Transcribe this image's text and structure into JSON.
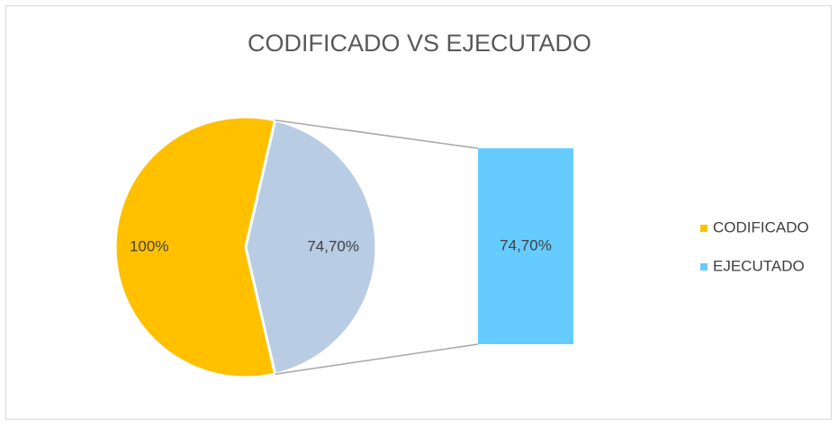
{
  "chart_data": {
    "type": "bar-of-pie",
    "title": "CODIFICADO VS EJECUTADO",
    "categories": [
      "CODIFICADO",
      "EJECUTADO"
    ],
    "values": [
      100,
      74.7
    ],
    "value_labels": [
      "100%",
      "74,70%"
    ],
    "colors": [
      "#FFC000",
      "#66CCFF"
    ],
    "group_color": "#B8CCE4",
    "secondary": [
      1
    ],
    "legend": "right"
  }
}
